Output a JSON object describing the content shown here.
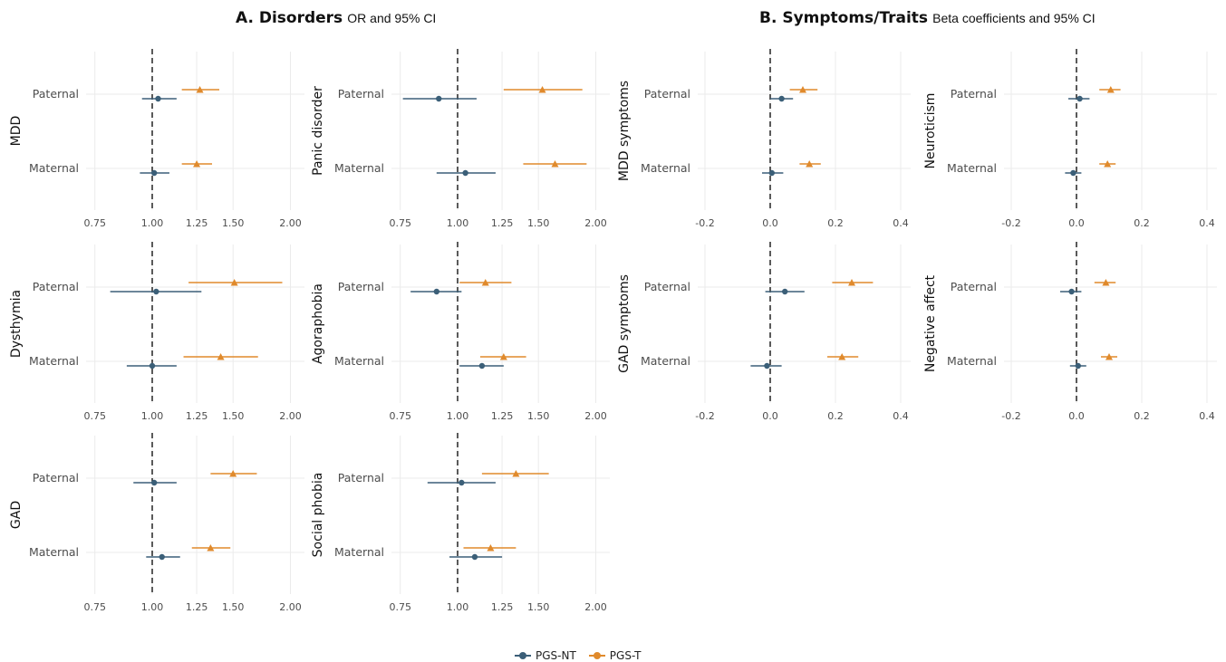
{
  "titles": {
    "a_bold": "A. Disorders",
    "a_sub": "OR and 95% CI",
    "b_bold": "B. Symptoms/Traits",
    "b_sub": "Beta coefficients and 95% CI"
  },
  "legend": [
    {
      "label": "PGS-NT",
      "color": "#3b5f78"
    },
    {
      "label": "PGS-T",
      "color": "#e08a2c"
    }
  ],
  "chart_data": [
    {
      "type": "scatter",
      "subtype": "forest",
      "panel": "A",
      "facet": "MDD",
      "scale": "log",
      "xticks": [
        "0.75",
        "1.00",
        "1.25",
        "1.50",
        "2.00"
      ],
      "xlim": [
        0.7,
        2.1
      ],
      "reference_line": 1.0,
      "categories": [
        "Paternal",
        "Maternal"
      ],
      "series": [
        {
          "name": "PGS-T",
          "estimates": [
            1.27,
            1.25
          ],
          "ci_low": [
            1.16,
            1.16
          ],
          "ci_high": [
            1.4,
            1.35
          ]
        },
        {
          "name": "PGS-NT",
          "estimates": [
            1.03,
            1.01
          ],
          "ci_low": [
            0.95,
            0.94
          ],
          "ci_high": [
            1.13,
            1.09
          ]
        }
      ]
    },
    {
      "type": "scatter",
      "subtype": "forest",
      "panel": "A",
      "facet": "Panic disorder",
      "scale": "log",
      "xticks": [
        "0.75",
        "1.00",
        "1.25",
        "1.50",
        "2.00"
      ],
      "xlim": [
        0.7,
        2.1
      ],
      "reference_line": 1.0,
      "categories": [
        "Paternal",
        "Maternal"
      ],
      "series": [
        {
          "name": "PGS-T",
          "estimates": [
            1.53,
            1.63
          ],
          "ci_low": [
            1.26,
            1.39
          ],
          "ci_high": [
            1.87,
            1.91
          ]
        },
        {
          "name": "PGS-NT",
          "estimates": [
            0.91,
            1.04
          ],
          "ci_low": [
            0.76,
            0.9
          ],
          "ci_high": [
            1.1,
            1.21
          ]
        }
      ]
    },
    {
      "type": "scatter",
      "subtype": "forest",
      "panel": "B",
      "facet": "MDD symptoms",
      "scale": "linear",
      "xticks": [
        "-0.2",
        "0.0",
        "0.2",
        "0.4"
      ],
      "xlim": [
        -0.25,
        0.42
      ],
      "reference_line": 0.0,
      "categories": [
        "Paternal",
        "Maternal"
      ],
      "series": [
        {
          "name": "PGS-T",
          "estimates": [
            0.1,
            0.12
          ],
          "ci_low": [
            0.06,
            0.09
          ],
          "ci_high": [
            0.145,
            0.155
          ]
        },
        {
          "name": "PGS-NT",
          "estimates": [
            0.035,
            0.005
          ],
          "ci_low": [
            0.0,
            -0.025
          ],
          "ci_high": [
            0.07,
            0.04
          ]
        }
      ]
    },
    {
      "type": "scatter",
      "subtype": "forest",
      "panel": "B",
      "facet": "Neuroticism",
      "scale": "linear",
      "xticks": [
        "-0.2",
        "0.0",
        "0.2",
        "0.4"
      ],
      "xlim": [
        -0.25,
        0.42
      ],
      "reference_line": 0.0,
      "categories": [
        "Paternal",
        "Maternal"
      ],
      "series": [
        {
          "name": "PGS-T",
          "estimates": [
            0.105,
            0.095
          ],
          "ci_low": [
            0.07,
            0.07
          ],
          "ci_high": [
            0.135,
            0.12
          ]
        },
        {
          "name": "PGS-NT",
          "estimates": [
            0.01,
            -0.01
          ],
          "ci_low": [
            -0.025,
            -0.035
          ],
          "ci_high": [
            0.04,
            0.015
          ]
        }
      ]
    },
    {
      "type": "scatter",
      "subtype": "forest",
      "panel": "A",
      "facet": "Dysthymia",
      "scale": "log",
      "xticks": [
        "0.75",
        "1.00",
        "1.25",
        "1.50",
        "2.00"
      ],
      "xlim": [
        0.7,
        2.1
      ],
      "reference_line": 1.0,
      "categories": [
        "Paternal",
        "Maternal"
      ],
      "series": [
        {
          "name": "PGS-T",
          "estimates": [
            1.51,
            1.41
          ],
          "ci_low": [
            1.2,
            1.17
          ],
          "ci_high": [
            1.92,
            1.7
          ]
        },
        {
          "name": "PGS-NT",
          "estimates": [
            1.02,
            1.0
          ],
          "ci_low": [
            0.81,
            0.88
          ],
          "ci_high": [
            1.28,
            1.13
          ]
        }
      ]
    },
    {
      "type": "scatter",
      "subtype": "forest",
      "panel": "A",
      "facet": "Agoraphobia",
      "scale": "log",
      "xticks": [
        "0.75",
        "1.00",
        "1.25",
        "1.50",
        "2.00"
      ],
      "xlim": [
        0.7,
        2.1
      ],
      "reference_line": 1.0,
      "categories": [
        "Paternal",
        "Maternal"
      ],
      "series": [
        {
          "name": "PGS-T",
          "estimates": [
            1.15,
            1.26
          ],
          "ci_low": [
            1.01,
            1.12
          ],
          "ci_high": [
            1.31,
            1.41
          ]
        },
        {
          "name": "PGS-NT",
          "estimates": [
            0.9,
            1.13
          ],
          "ci_low": [
            0.79,
            1.01
          ],
          "ci_high": [
            1.02,
            1.26
          ]
        }
      ]
    },
    {
      "type": "scatter",
      "subtype": "forest",
      "panel": "B",
      "facet": "GAD symptoms",
      "scale": "linear",
      "xticks": [
        "-0.2",
        "0.0",
        "0.2",
        "0.4"
      ],
      "xlim": [
        -0.25,
        0.42
      ],
      "reference_line": 0.0,
      "categories": [
        "Paternal",
        "Maternal"
      ],
      "series": [
        {
          "name": "PGS-T",
          "estimates": [
            0.25,
            0.22
          ],
          "ci_low": [
            0.19,
            0.175
          ],
          "ci_high": [
            0.315,
            0.27
          ]
        },
        {
          "name": "PGS-NT",
          "estimates": [
            0.045,
            -0.01
          ],
          "ci_low": [
            -0.015,
            -0.06
          ],
          "ci_high": [
            0.105,
            0.035
          ]
        }
      ]
    },
    {
      "type": "scatter",
      "subtype": "forest",
      "panel": "B",
      "facet": "Negative affect",
      "scale": "linear",
      "xticks": [
        "-0.2",
        "0.0",
        "0.2",
        "0.4"
      ],
      "xlim": [
        -0.25,
        0.42
      ],
      "reference_line": 0.0,
      "categories": [
        "Paternal",
        "Maternal"
      ],
      "series": [
        {
          "name": "PGS-T",
          "estimates": [
            0.09,
            0.1
          ],
          "ci_low": [
            0.055,
            0.075
          ],
          "ci_high": [
            0.12,
            0.125
          ]
        },
        {
          "name": "PGS-NT",
          "estimates": [
            -0.015,
            0.005
          ],
          "ci_low": [
            -0.05,
            -0.02
          ],
          "ci_high": [
            0.015,
            0.03
          ]
        }
      ]
    },
    {
      "type": "scatter",
      "subtype": "forest",
      "panel": "A",
      "facet": "GAD",
      "scale": "log",
      "xticks": [
        "0.75",
        "1.00",
        "1.25",
        "1.50",
        "2.00"
      ],
      "xlim": [
        0.7,
        2.1
      ],
      "reference_line": 1.0,
      "categories": [
        "Paternal",
        "Maternal"
      ],
      "series": [
        {
          "name": "PGS-T",
          "estimates": [
            1.5,
            1.34
          ],
          "ci_low": [
            1.34,
            1.22
          ],
          "ci_high": [
            1.69,
            1.48
          ]
        },
        {
          "name": "PGS-NT",
          "estimates": [
            1.01,
            1.05
          ],
          "ci_low": [
            0.91,
            0.97
          ],
          "ci_high": [
            1.13,
            1.15
          ]
        }
      ]
    },
    {
      "type": "scatter",
      "subtype": "forest",
      "panel": "A",
      "facet": "Social phobia",
      "scale": "log",
      "xticks": [
        "0.75",
        "1.00",
        "1.25",
        "1.50",
        "2.00"
      ],
      "xlim": [
        0.7,
        2.1
      ],
      "reference_line": 1.0,
      "categories": [
        "Paternal",
        "Maternal"
      ],
      "series": [
        {
          "name": "PGS-T",
          "estimates": [
            1.34,
            1.18
          ],
          "ci_low": [
            1.13,
            1.03
          ],
          "ci_high": [
            1.58,
            1.34
          ]
        },
        {
          "name": "PGS-NT",
          "estimates": [
            1.02,
            1.09
          ],
          "ci_low": [
            0.86,
            0.96
          ],
          "ci_high": [
            1.21,
            1.25
          ]
        }
      ]
    }
  ]
}
